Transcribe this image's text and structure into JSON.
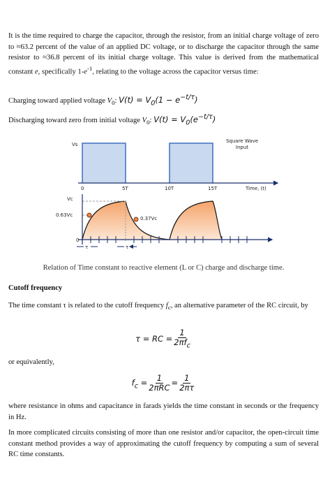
{
  "intro": [
    "It is the time required to charge the capacitor, through the resistor, from an initial charge voltage of zero to ≈63.2 percent of the value of an applied DC voltage, or to discharge the capacitor through the same resistor to ≈36.8 percent of its initial charge voltage. This value is derived from the mathematical constant ",
    "e",
    ", specifically 1-",
    "e",
    "-1",
    ", relating to the voltage across the capacitor versus time:"
  ],
  "charging": [
    "Charging toward applied voltage ",
    "V",
    "0",
    ": "
  ],
  "charging_eq": [
    "V(t) = V",
    "0",
    "(1 − e",
    "−t/τ",
    ")"
  ],
  "discharging": [
    "Discharging toward zero from initial voltage ",
    "V",
    "0",
    ": "
  ],
  "discharging_eq": [
    "V(t) = V",
    "0",
    "(e",
    "−t/τ",
    ")"
  ],
  "figure": {
    "top": {
      "vs": "Vs",
      "zero": "0",
      "t5": "5T",
      "t10": "10T",
      "t15": "15T",
      "time": "Time, (t)",
      "legend": [
        "Square Wave",
        "Input"
      ]
    },
    "bottom": {
      "vc": "Vc",
      "v063": "0.63Vc",
      "v037": "0.37Vc",
      "zero": "0",
      "tau1": "τ",
      "tau2": "τ"
    },
    "caption": "Relation of Time constant to reactive element (L or C) charge and discharge time."
  },
  "heading": "Cutoff frequency",
  "cutoff": [
    "The time constant τ is related to the cutoff frequency ",
    "f",
    "c",
    ", an alternative parameter of the RC circuit, by"
  ],
  "eq1": {
    "lhs": "τ = RC =",
    "num": "1",
    "den": [
      "2π",
      "f",
      "c"
    ]
  },
  "equivalently": "or equivalently,",
  "eq2": {
    "lhs": [
      "f",
      "c",
      " ="
    ],
    "num1": "1",
    "den1": "2πRC",
    "eq": "=",
    "num2": "1",
    "den2": "2πτ"
  },
  "units": "where resistance in ohms and capacitance in farads yields the time constant in seconds or the frequency in Hz.",
  "complex": "In more complicated circuits consisting of more than one resistor and/or capacitor, the open-circuit time constant method provides a way of approximating the cutoff frequency by computing a sum of several RC time constants."
}
